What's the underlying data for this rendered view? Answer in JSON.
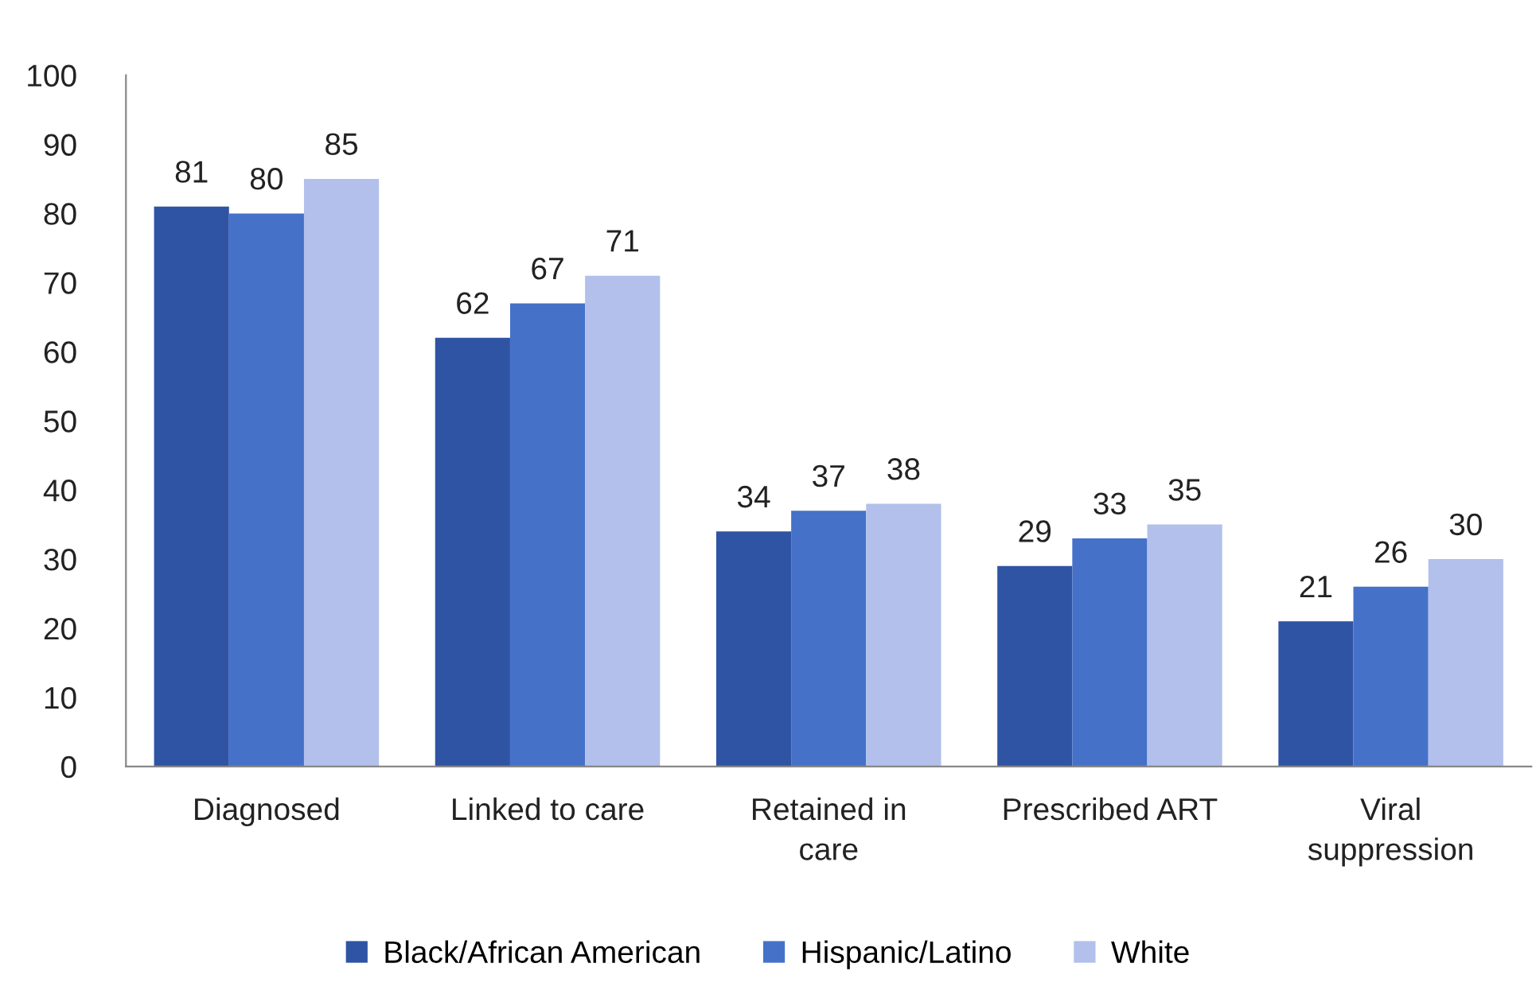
{
  "chart_data": {
    "type": "bar",
    "categories": [
      "Diagnosed",
      "Linked to care",
      "Retained in\ncare",
      "Prescribed ART",
      "Viral\nsuppression"
    ],
    "series": [
      {
        "name": "Black/African American",
        "color": "#2f54a3",
        "values": [
          81,
          62,
          34,
          29,
          21
        ]
      },
      {
        "name": "Hispanic/Latino",
        "color": "#4571c9",
        "values": [
          80,
          67,
          37,
          33,
          26
        ]
      },
      {
        "name": "White",
        "color": "#b2c0eb",
        "values": [
          85,
          71,
          38,
          35,
          30
        ]
      }
    ],
    "ylim": [
      0,
      100
    ],
    "yticks": [
      0,
      10,
      20,
      30,
      40,
      50,
      60,
      70,
      80,
      90,
      100
    ],
    "grid": false,
    "legend": "bottom",
    "data_labels": true
  }
}
